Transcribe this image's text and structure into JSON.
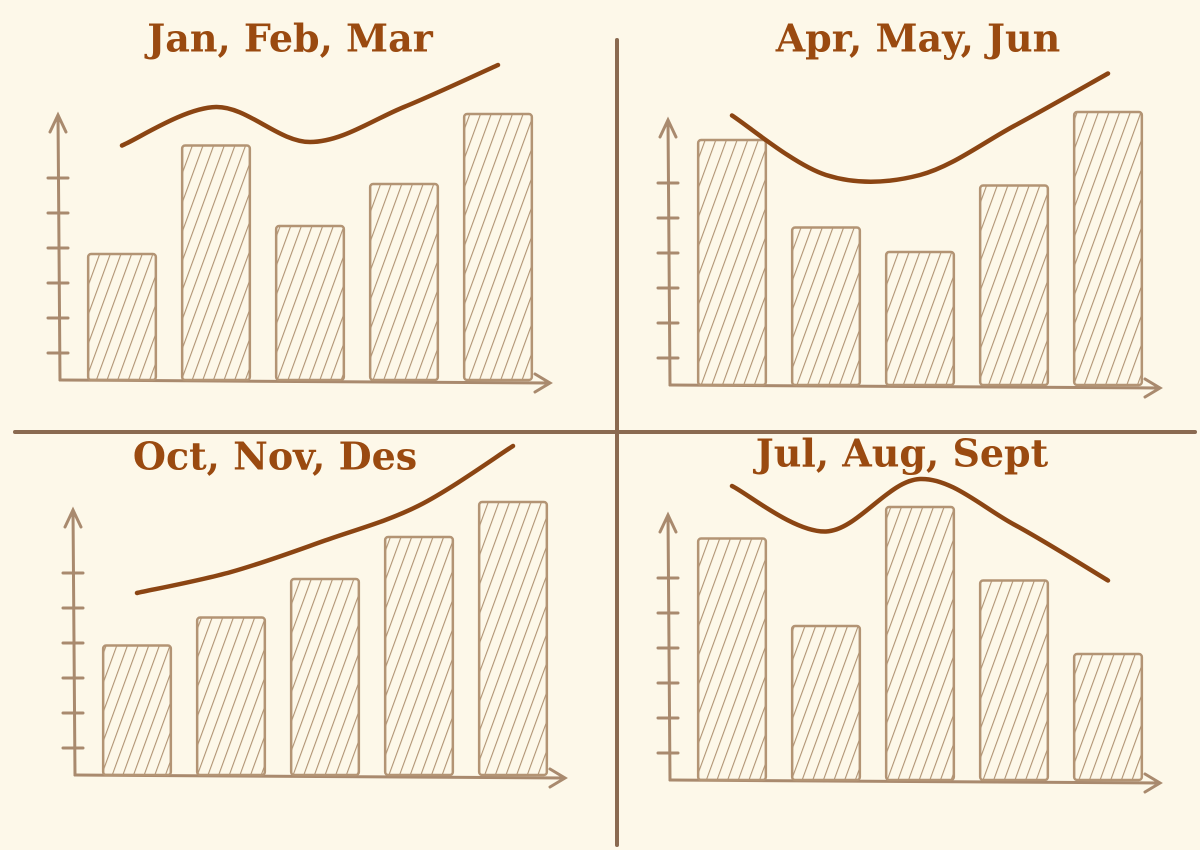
{
  "chart_data": [
    {
      "type": "bar",
      "title": "Jan, Feb, Mar",
      "ylim": [
        0,
        10
      ],
      "series": [
        {
          "type": "bar",
          "color": "#b39474",
          "values": [
            3.6,
            6.7,
            4.4,
            5.6,
            7.6
          ]
        },
        {
          "type": "line",
          "color": "#8b4513",
          "values": [
            6.7,
            7.8,
            6.8,
            7.8,
            9.0
          ]
        }
      ]
    },
    {
      "type": "bar",
      "title": "Apr, May, Jun",
      "ylim": [
        0,
        10
      ],
      "series": [
        {
          "type": "bar",
          "color": "#b39474",
          "values": [
            7.0,
            4.5,
            3.8,
            5.7,
            7.8
          ]
        },
        {
          "type": "line",
          "color": "#8b4513",
          "values": [
            7.7,
            6.0,
            6.0,
            7.4,
            8.9
          ]
        }
      ]
    },
    {
      "type": "bar",
      "title": "Oct, Nov, Des",
      "ylim": [
        0,
        10
      ],
      "series": [
        {
          "type": "bar",
          "color": "#b39474",
          "values": [
            3.7,
            4.5,
            5.6,
            6.8,
            7.8
          ]
        },
        {
          "type": "line",
          "color": "#8b4513",
          "values": [
            5.2,
            5.8,
            6.7,
            7.7,
            9.4
          ]
        }
      ]
    },
    {
      "type": "bar",
      "title": "Jul, Aug, Sept",
      "ylim": [
        0,
        10
      ],
      "series": [
        {
          "type": "bar",
          "color": "#b39474",
          "values": [
            6.9,
            4.4,
            7.8,
            5.7,
            3.6
          ]
        },
        {
          "type": "line",
          "color": "#8b4513",
          "values": [
            8.4,
            7.1,
            8.6,
            7.3,
            5.7
          ]
        }
      ]
    }
  ]
}
